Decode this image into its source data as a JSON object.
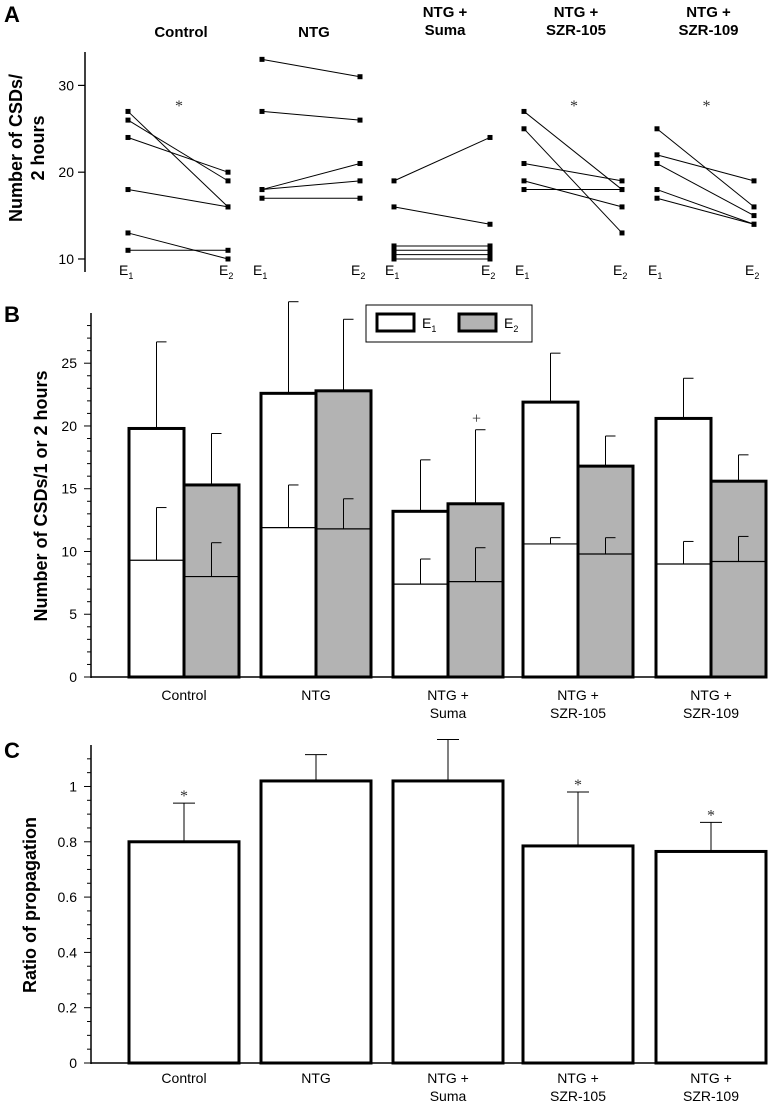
{
  "colors": {
    "e1_fill": "#ffffff",
    "e2_fill": "#b3b3b3",
    "stroke": "#000000",
    "text": "#000000"
  },
  "panel_letters": [
    "A",
    "B",
    "C"
  ],
  "chart_data": [
    {
      "panel": "A",
      "type": "line",
      "ylabel_lines": [
        "Number of CSDs/",
        "2 hours"
      ],
      "ylim": [
        8.5,
        35
      ],
      "yticks": [
        "10",
        "20",
        "30"
      ],
      "x_label_base": "E",
      "x_label_subs": [
        "1",
        "2"
      ],
      "groups": [
        {
          "title_lines": [
            "Control"
          ],
          "significance": "*",
          "pairs": [
            [
              27,
              16
            ],
            [
              26,
              19
            ],
            [
              24,
              20
            ],
            [
              18,
              16
            ],
            [
              13,
              10
            ],
            [
              11,
              11
            ]
          ]
        },
        {
          "title_lines": [
            "NTG"
          ],
          "significance": "",
          "pairs": [
            [
              33,
              31
            ],
            [
              27,
              26
            ],
            [
              18,
              21
            ],
            [
              18,
              19
            ],
            [
              17,
              17
            ]
          ]
        },
        {
          "title_lines": [
            "NTG +",
            "Suma"
          ],
          "significance": "",
          "pairs": [
            [
              19,
              24
            ],
            [
              16,
              14
            ],
            [
              11.5,
              11.5
            ],
            [
              11,
              11
            ],
            [
              10.5,
              10.5
            ],
            [
              10,
              10
            ]
          ]
        },
        {
          "title_lines": [
            "NTG +",
            "SZR-105"
          ],
          "significance": "*",
          "pairs": [
            [
              27,
              18
            ],
            [
              25,
              13
            ],
            [
              21,
              19
            ],
            [
              19,
              16
            ],
            [
              18,
              18
            ]
          ]
        },
        {
          "title_lines": [
            "NTG +",
            "SZR-109"
          ],
          "significance": "*",
          "pairs": [
            [
              25,
              16
            ],
            [
              22,
              19
            ],
            [
              21,
              15
            ],
            [
              18,
              14
            ],
            [
              17,
              14
            ]
          ]
        }
      ]
    },
    {
      "panel": "B",
      "type": "bar",
      "ylabel": "Number of CSDs/1 or 2 hours",
      "ylim": [
        0,
        29
      ],
      "yticks": [
        "0",
        "5",
        "10",
        "15",
        "20",
        "25"
      ],
      "categories": [
        [
          "Control"
        ],
        [
          "NTG"
        ],
        [
          "NTG +",
          "Suma"
        ],
        [
          "NTG +",
          "SZR-105"
        ],
        [
          "NTG +",
          "SZR-109"
        ]
      ],
      "legend": {
        "base": "E",
        "items": [
          "1",
          "2"
        ]
      },
      "series": [
        {
          "name": "E1",
          "total": [
            19.8,
            22.6,
            13.2,
            21.9,
            20.6
          ],
          "total_err": [
            6.9,
            7.3,
            4.1,
            3.9,
            3.2
          ],
          "inner": [
            9.3,
            11.9,
            7.4,
            10.6,
            9.0
          ],
          "inner_err": [
            4.2,
            3.4,
            2.0,
            0.5,
            1.8
          ],
          "mark": [
            "",
            "",
            "",
            "",
            ""
          ]
        },
        {
          "name": "E2",
          "total": [
            15.3,
            22.8,
            13.8,
            16.8,
            15.6
          ],
          "total_err": [
            4.1,
            5.7,
            5.9,
            2.4,
            2.1
          ],
          "inner": [
            8.0,
            11.8,
            7.6,
            9.8,
            9.2
          ],
          "inner_err": [
            2.7,
            2.4,
            2.7,
            1.3,
            2.0
          ],
          "mark": [
            "",
            "",
            "+",
            "",
            ""
          ]
        }
      ]
    },
    {
      "panel": "C",
      "type": "bar",
      "ylabel": "Ratio of propagation",
      "ylim": [
        0,
        1.15
      ],
      "yticks": [
        "0",
        "0.2",
        "0.4",
        "0.6",
        "0.8",
        "1"
      ],
      "categories": [
        [
          "Control"
        ],
        [
          "NTG"
        ],
        [
          "NTG +",
          "Suma"
        ],
        [
          "NTG +",
          "SZR-105"
        ],
        [
          "NTG +",
          "SZR-109"
        ]
      ],
      "values": [
        0.8,
        1.02,
        1.02,
        0.785,
        0.765
      ],
      "errors": [
        0.14,
        0.095,
        0.15,
        0.195,
        0.105
      ],
      "marks": [
        "*",
        "",
        "",
        "*",
        "*"
      ]
    }
  ]
}
